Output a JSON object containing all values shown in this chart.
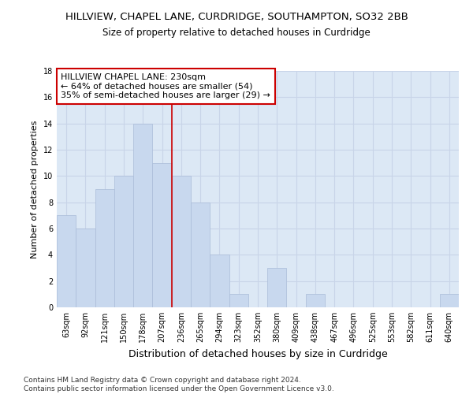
{
  "title1": "HILLVIEW, CHAPEL LANE, CURDRIDGE, SOUTHAMPTON, SO32 2BB",
  "title2": "Size of property relative to detached houses in Curdridge",
  "xlabel": "Distribution of detached houses by size in Curdridge",
  "ylabel": "Number of detached properties",
  "categories": [
    "63sqm",
    "92sqm",
    "121sqm",
    "150sqm",
    "178sqm",
    "207sqm",
    "236sqm",
    "265sqm",
    "294sqm",
    "323sqm",
    "352sqm",
    "380sqm",
    "409sqm",
    "438sqm",
    "467sqm",
    "496sqm",
    "525sqm",
    "553sqm",
    "582sqm",
    "611sqm",
    "640sqm"
  ],
  "values": [
    7,
    6,
    9,
    10,
    14,
    11,
    10,
    8,
    4,
    1,
    0,
    3,
    0,
    1,
    0,
    0,
    0,
    0,
    0,
    0,
    1
  ],
  "bar_color": "#c8d8ee",
  "bar_edgecolor": "#aabcd8",
  "vline_x": 5.5,
  "vline_color": "#cc0000",
  "annotation_line1": "HILLVIEW CHAPEL LANE: 230sqm",
  "annotation_line2": "← 64% of detached houses are smaller (54)",
  "annotation_line3": "35% of semi-detached houses are larger (29) →",
  "annotation_box_color": "#cc0000",
  "ylim": [
    0,
    18
  ],
  "yticks": [
    0,
    2,
    4,
    6,
    8,
    10,
    12,
    14,
    16,
    18
  ],
  "grid_color": "#c8d4e8",
  "background_color": "#dce8f5",
  "footer": "Contains HM Land Registry data © Crown copyright and database right 2024.\nContains public sector information licensed under the Open Government Licence v3.0.",
  "title1_fontsize": 9.5,
  "title2_fontsize": 8.5,
  "xlabel_fontsize": 9,
  "ylabel_fontsize": 8,
  "tick_fontsize": 7,
  "annotation_fontsize": 8,
  "footer_fontsize": 6.5
}
